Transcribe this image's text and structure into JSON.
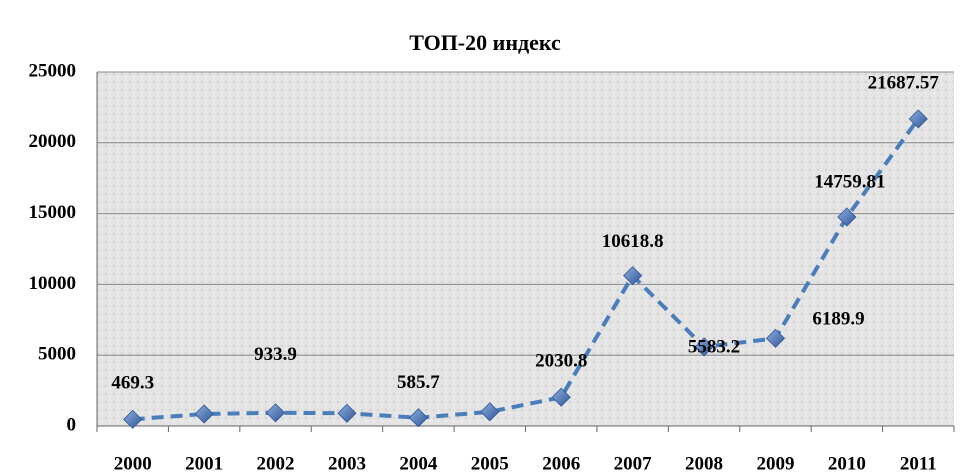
{
  "chart_data": {
    "type": "line",
    "title": "ТОП-20 индекс",
    "categories": [
      "2000",
      "2001",
      "2002",
      "2003",
      "2004",
      "2005",
      "2006",
      "2007",
      "2008",
      "2009",
      "2010",
      "2011"
    ],
    "series": [
      {
        "name": "ТОП-20 индекс",
        "color": "#4a7ebb",
        "values": [
          469.3,
          850,
          933.9,
          900,
          585.7,
          1000,
          2030.8,
          10618.8,
          5583.2,
          6189.9,
          14759.81,
          21687.57
        ],
        "value_labels": [
          "469.3",
          null,
          "933.9",
          null,
          "585.7",
          null,
          "2030.8",
          "10618.8",
          "5583.2",
          "6189.9",
          "14759.81",
          "21687.57"
        ]
      }
    ],
    "ylim": [
      0,
      25000
    ],
    "yticks": [
      0,
      5000,
      10000,
      15000,
      20000,
      25000
    ],
    "grid": true
  }
}
